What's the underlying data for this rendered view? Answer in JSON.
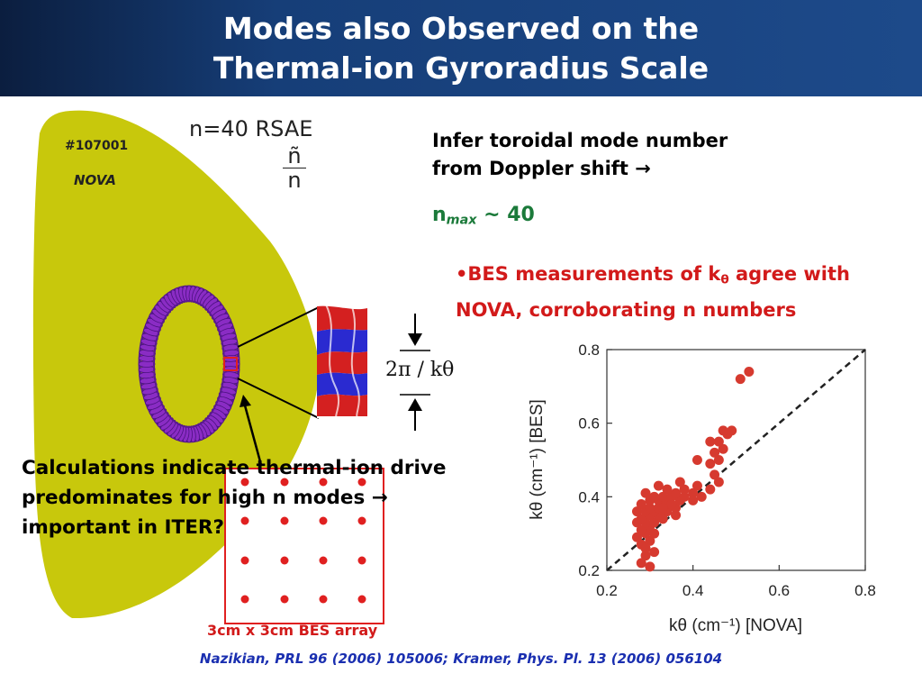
{
  "title": {
    "line1": "Modes also Observed on the",
    "line2": "Thermal-ion Gyroradius Scale"
  },
  "figure": {
    "shot_label": "#107001",
    "code_label": "NOVA",
    "mode_label": "n=40 RSAE",
    "ratio_num": "ñ",
    "ratio_den": "n",
    "wavelength_label": "2π / kθ",
    "bes_array_caption": "3cm x 3cm BES array",
    "colors": {
      "plasma": "#c8c80c",
      "mode_ring": "#8a2cc4",
      "bes_box": "#e02020",
      "bes_dot": "#e02020"
    }
  },
  "infer": {
    "line1": "Infer toroidal mode number",
    "line2": "from Doppler shift",
    "arrow": "→",
    "nmax_base": "n",
    "nmax_sub": "max",
    "nmax_value": "~ 40"
  },
  "bes": {
    "line1a": "•BES measurements of k",
    "theta": "θ",
    "line1b": " agree with",
    "line2": "NOVA, corroborating n numbers"
  },
  "calc": {
    "line1": "Calculations indicate thermal-ion drive",
    "line2": "predominates for high n modes",
    "arrow": "→",
    "line3": "important in ITER?"
  },
  "citation": "Nazikian, PRL 96 (2006) 105006; Kramer, Phys. Pl. 13 (2006) 056104",
  "chart_data": {
    "type": "scatter",
    "xlabel": "kθ  (cm⁻¹) [NOVA]",
    "ylabel": "kθ  (cm⁻¹) [BES]",
    "xlim": [
      0.2,
      0.8
    ],
    "ylim": [
      0.2,
      0.8
    ],
    "xticks": [
      "0.2",
      "0.4",
      "0.6",
      "0.8"
    ],
    "yticks": [
      "0.2",
      "0.4",
      "0.6",
      "0.8"
    ],
    "reference_line": "y = x (dashed)",
    "point_color": "#d63a2f",
    "points": [
      [
        0.28,
        0.22
      ],
      [
        0.3,
        0.21
      ],
      [
        0.29,
        0.24
      ],
      [
        0.31,
        0.25
      ],
      [
        0.28,
        0.27
      ],
      [
        0.3,
        0.28
      ],
      [
        0.27,
        0.29
      ],
      [
        0.29,
        0.3
      ],
      [
        0.31,
        0.3
      ],
      [
        0.28,
        0.31
      ],
      [
        0.3,
        0.32
      ],
      [
        0.27,
        0.33
      ],
      [
        0.29,
        0.33
      ],
      [
        0.31,
        0.33
      ],
      [
        0.28,
        0.34
      ],
      [
        0.3,
        0.35
      ],
      [
        0.32,
        0.35
      ],
      [
        0.27,
        0.36
      ],
      [
        0.29,
        0.36
      ],
      [
        0.31,
        0.36
      ],
      [
        0.33,
        0.34
      ],
      [
        0.3,
        0.37
      ],
      [
        0.32,
        0.37
      ],
      [
        0.34,
        0.36
      ],
      [
        0.28,
        0.38
      ],
      [
        0.3,
        0.39
      ],
      [
        0.32,
        0.39
      ],
      [
        0.34,
        0.38
      ],
      [
        0.36,
        0.37
      ],
      [
        0.31,
        0.4
      ],
      [
        0.33,
        0.4
      ],
      [
        0.35,
        0.4
      ],
      [
        0.37,
        0.39
      ],
      [
        0.29,
        0.41
      ],
      [
        0.34,
        0.42
      ],
      [
        0.36,
        0.41
      ],
      [
        0.38,
        0.4
      ],
      [
        0.4,
        0.41
      ],
      [
        0.32,
        0.43
      ],
      [
        0.38,
        0.42
      ],
      [
        0.41,
        0.43
      ],
      [
        0.35,
        0.38
      ],
      [
        0.37,
        0.44
      ],
      [
        0.4,
        0.39
      ],
      [
        0.42,
        0.4
      ],
      [
        0.44,
        0.42
      ],
      [
        0.46,
        0.44
      ],
      [
        0.45,
        0.46
      ],
      [
        0.44,
        0.49
      ],
      [
        0.46,
        0.5
      ],
      [
        0.41,
        0.5
      ],
      [
        0.45,
        0.52
      ],
      [
        0.47,
        0.53
      ],
      [
        0.44,
        0.55
      ],
      [
        0.46,
        0.55
      ],
      [
        0.48,
        0.57
      ],
      [
        0.47,
        0.58
      ],
      [
        0.49,
        0.58
      ],
      [
        0.33,
        0.37
      ],
      [
        0.36,
        0.35
      ],
      [
        0.29,
        0.26
      ],
      [
        0.51,
        0.72
      ],
      [
        0.53,
        0.74
      ]
    ]
  }
}
